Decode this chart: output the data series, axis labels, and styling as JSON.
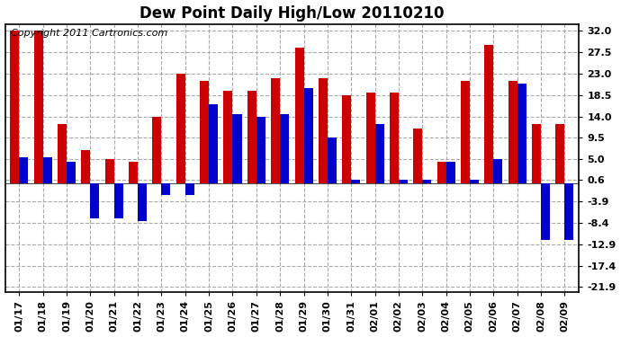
{
  "title": "Dew Point Daily High/Low 20110210",
  "copyright": "Copyright 2011 Cartronics.com",
  "dates": [
    "01/17",
    "01/18",
    "01/19",
    "01/20",
    "01/21",
    "01/22",
    "01/23",
    "01/24",
    "01/25",
    "01/26",
    "01/27",
    "01/28",
    "01/29",
    "01/30",
    "01/31",
    "02/01",
    "02/02",
    "02/03",
    "02/04",
    "02/05",
    "02/06",
    "02/07",
    "02/08",
    "02/09"
  ],
  "high": [
    32.0,
    32.0,
    12.5,
    7.0,
    5.0,
    4.5,
    14.0,
    23.0,
    21.5,
    19.5,
    19.5,
    22.0,
    28.5,
    22.0,
    18.5,
    19.0,
    19.0,
    11.5,
    4.5,
    21.5,
    29.0,
    21.5,
    12.5,
    12.5
  ],
  "low": [
    5.5,
    5.5,
    4.5,
    -7.5,
    -7.5,
    -8.0,
    -2.5,
    -2.5,
    16.5,
    14.5,
    14.0,
    14.5,
    20.0,
    9.5,
    0.6,
    12.5,
    0.6,
    0.6,
    4.5,
    0.6,
    5.0,
    21.0,
    -12.0,
    -12.0
  ],
  "yticks": [
    32.0,
    27.5,
    23.0,
    18.5,
    14.0,
    9.5,
    5.0,
    0.6,
    -3.9,
    -8.4,
    -12.9,
    -17.4,
    -21.9
  ],
  "ylim": [
    -23.0,
    33.5
  ],
  "bar_color_high": "#cc0000",
  "bar_color_low": "#0000cc",
  "background_color": "#ffffff",
  "grid_color": "#aaaaaa",
  "title_fontsize": 12,
  "copyright_fontsize": 8,
  "tick_fontsize": 8,
  "bar_width": 0.38
}
